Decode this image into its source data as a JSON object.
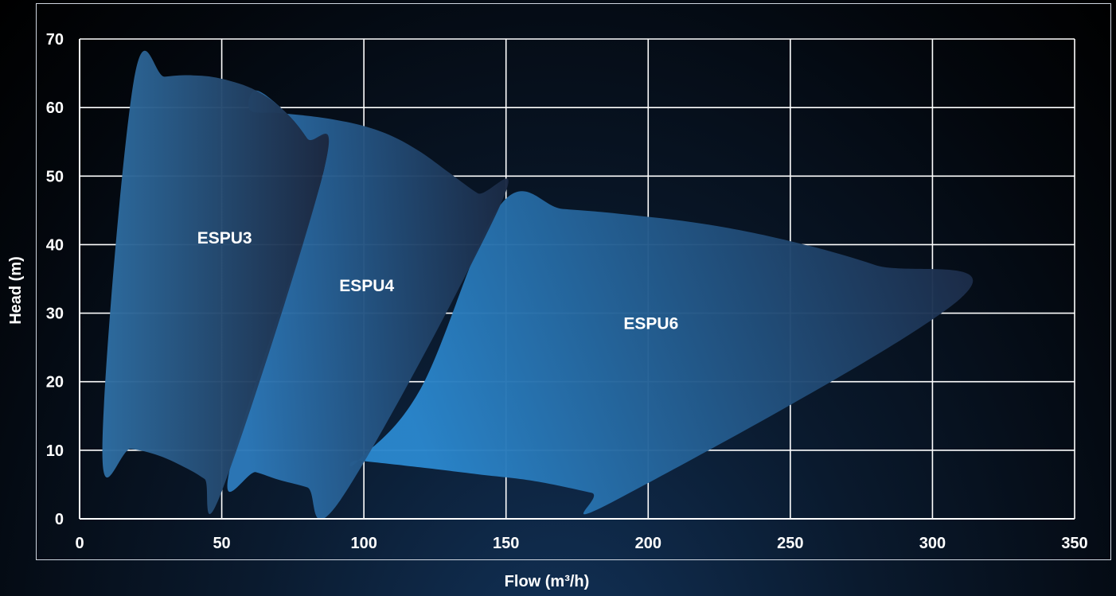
{
  "chart_data": {
    "type": "area",
    "xlabel": "Flow (m³/h)",
    "ylabel": "Head (m)",
    "xlim": [
      0,
      350
    ],
    "ylim": [
      0,
      70
    ],
    "x_ticks": [
      "0",
      "50",
      "100",
      "150",
      "200",
      "250",
      "300",
      "350"
    ],
    "y_ticks": [
      "0",
      "10",
      "20",
      "30",
      "40",
      "50",
      "60",
      "70"
    ],
    "grid": true,
    "series": [
      {
        "name": "ESPU3",
        "label_at": [
          51,
          41
        ],
        "color_light": "#2e6ea3",
        "color_dark": "#1c2942",
        "boundary": [
          [
            8,
            10.3
          ],
          [
            18,
            10.2
          ],
          [
            28,
            9.2
          ],
          [
            38,
            7.3
          ],
          [
            44,
            5.8
          ],
          [
            50,
            4.0
          ],
          [
            86,
            51
          ],
          [
            80,
            55.5
          ],
          [
            72,
            59.5
          ],
          [
            62,
            62.5
          ],
          [
            50,
            64.2
          ],
          [
            40,
            64.7
          ],
          [
            30,
            64.5
          ],
          [
            19,
            63.8
          ]
        ]
      },
      {
        "name": "ESPU4",
        "label_at": [
          101,
          34
        ],
        "color_light": "#2c78b8",
        "color_dark": "#1a2740",
        "boundary": [
          [
            53,
            7.6
          ],
          [
            62,
            6.8
          ],
          [
            70,
            5.7
          ],
          [
            80,
            4.6
          ],
          [
            92,
            2.9
          ],
          [
            148,
            45.8
          ],
          [
            140,
            47.5
          ],
          [
            130,
            50.5
          ],
          [
            120,
            53.5
          ],
          [
            110,
            55.8
          ],
          [
            100,
            57.3
          ],
          [
            90,
            58.2
          ],
          [
            80,
            58.8
          ],
          [
            70,
            59.2
          ],
          [
            60,
            59.6
          ],
          [
            62,
            62.5
          ],
          [
            72,
            59.5
          ],
          [
            80,
            55.5
          ],
          [
            86,
            51
          ]
        ]
      },
      {
        "name": "ESPU6",
        "label_at": [
          201,
          28.5
        ],
        "color_light": "#2a86cc",
        "color_dark": "#1b2741",
        "boundary": [
          [
            98,
            8.5
          ],
          [
            120,
            7.5
          ],
          [
            140,
            6.5
          ],
          [
            160,
            5.5
          ],
          [
            180,
            3.8
          ],
          [
            189,
            2.8
          ],
          [
            310,
            32.2
          ],
          [
            280,
            37
          ],
          [
            250,
            40.5
          ],
          [
            220,
            43
          ],
          [
            190,
            44.5
          ],
          [
            170,
            45.2
          ],
          [
            148,
            45.8
          ],
          [
            120,
            19
          ],
          [
            98,
            8.5
          ]
        ]
      }
    ]
  }
}
